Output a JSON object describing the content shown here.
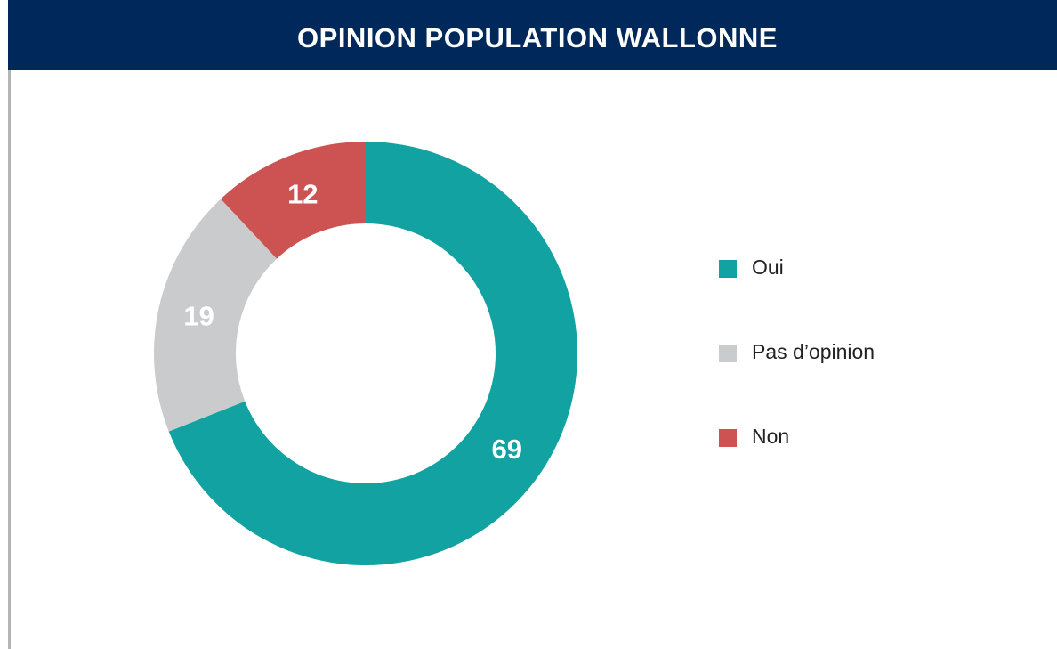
{
  "chart_data": {
    "type": "pie",
    "donut": true,
    "title": "OPINION POPULATION WALLONNE",
    "categories": [
      "Oui",
      "Pas d’opinion",
      "Non"
    ],
    "values": [
      69,
      19,
      12
    ],
    "colors": [
      "#12a2a1",
      "#c9cbcd",
      "#cd5352"
    ]
  }
}
